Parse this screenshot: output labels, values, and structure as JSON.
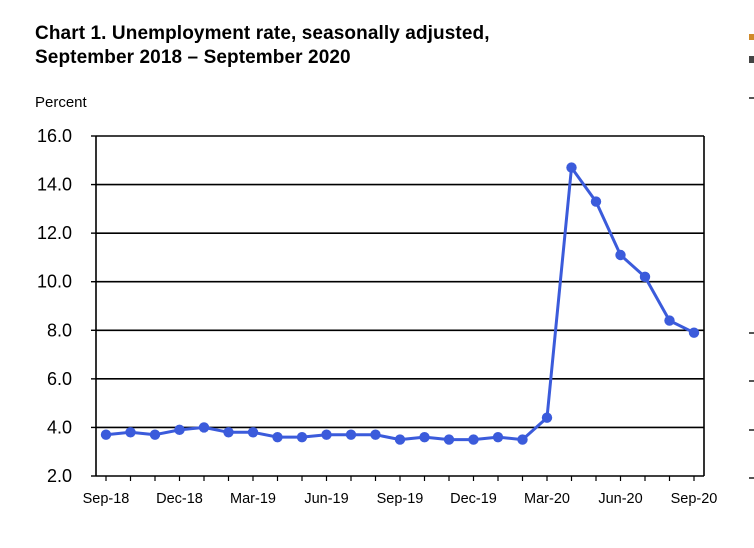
{
  "chart_data": {
    "type": "line",
    "title": "Chart 1. Unemployment rate, seasonally adjusted,",
    "subtitle": "September 2018 – September 2020",
    "ylabel": "Percent",
    "xlabel": "",
    "ylim": [
      2.0,
      16.0
    ],
    "yticks": [
      "2.0",
      "4.0",
      "6.0",
      "8.0",
      "10.0",
      "12.0",
      "14.0",
      "16.0"
    ],
    "xticks": [
      {
        "label": "Sep-18",
        "index": 0
      },
      {
        "label": "Dec-18",
        "index": 3
      },
      {
        "label": "Mar-19",
        "index": 6
      },
      {
        "label": "Jun-19",
        "index": 9
      },
      {
        "label": "Sep-19",
        "index": 12
      },
      {
        "label": "Dec-19",
        "index": 15
      },
      {
        "label": "Mar-20",
        "index": 18
      },
      {
        "label": "Jun-20",
        "index": 21
      },
      {
        "label": "Sep-20",
        "index": 24
      }
    ],
    "grid": true,
    "series": [
      {
        "color": "#3b5bdb",
        "x": [
          "Sep-18",
          "Oct-18",
          "Nov-18",
          "Dec-18",
          "Jan-19",
          "Feb-19",
          "Mar-19",
          "Apr-19",
          "May-19",
          "Jun-19",
          "Jul-19",
          "Aug-19",
          "Sep-19",
          "Oct-19",
          "Nov-19",
          "Dec-19",
          "Jan-20",
          "Feb-20",
          "Mar-20",
          "Apr-20",
          "May-20",
          "Jun-20",
          "Jul-20",
          "Aug-20",
          "Sep-20"
        ],
        "values": [
          3.7,
          3.8,
          3.7,
          3.9,
          4.0,
          3.8,
          3.8,
          3.6,
          3.6,
          3.7,
          3.7,
          3.7,
          3.5,
          3.6,
          3.5,
          3.5,
          3.6,
          3.5,
          4.4,
          14.7,
          13.3,
          11.1,
          10.2,
          8.4,
          7.9
        ]
      }
    ]
  }
}
